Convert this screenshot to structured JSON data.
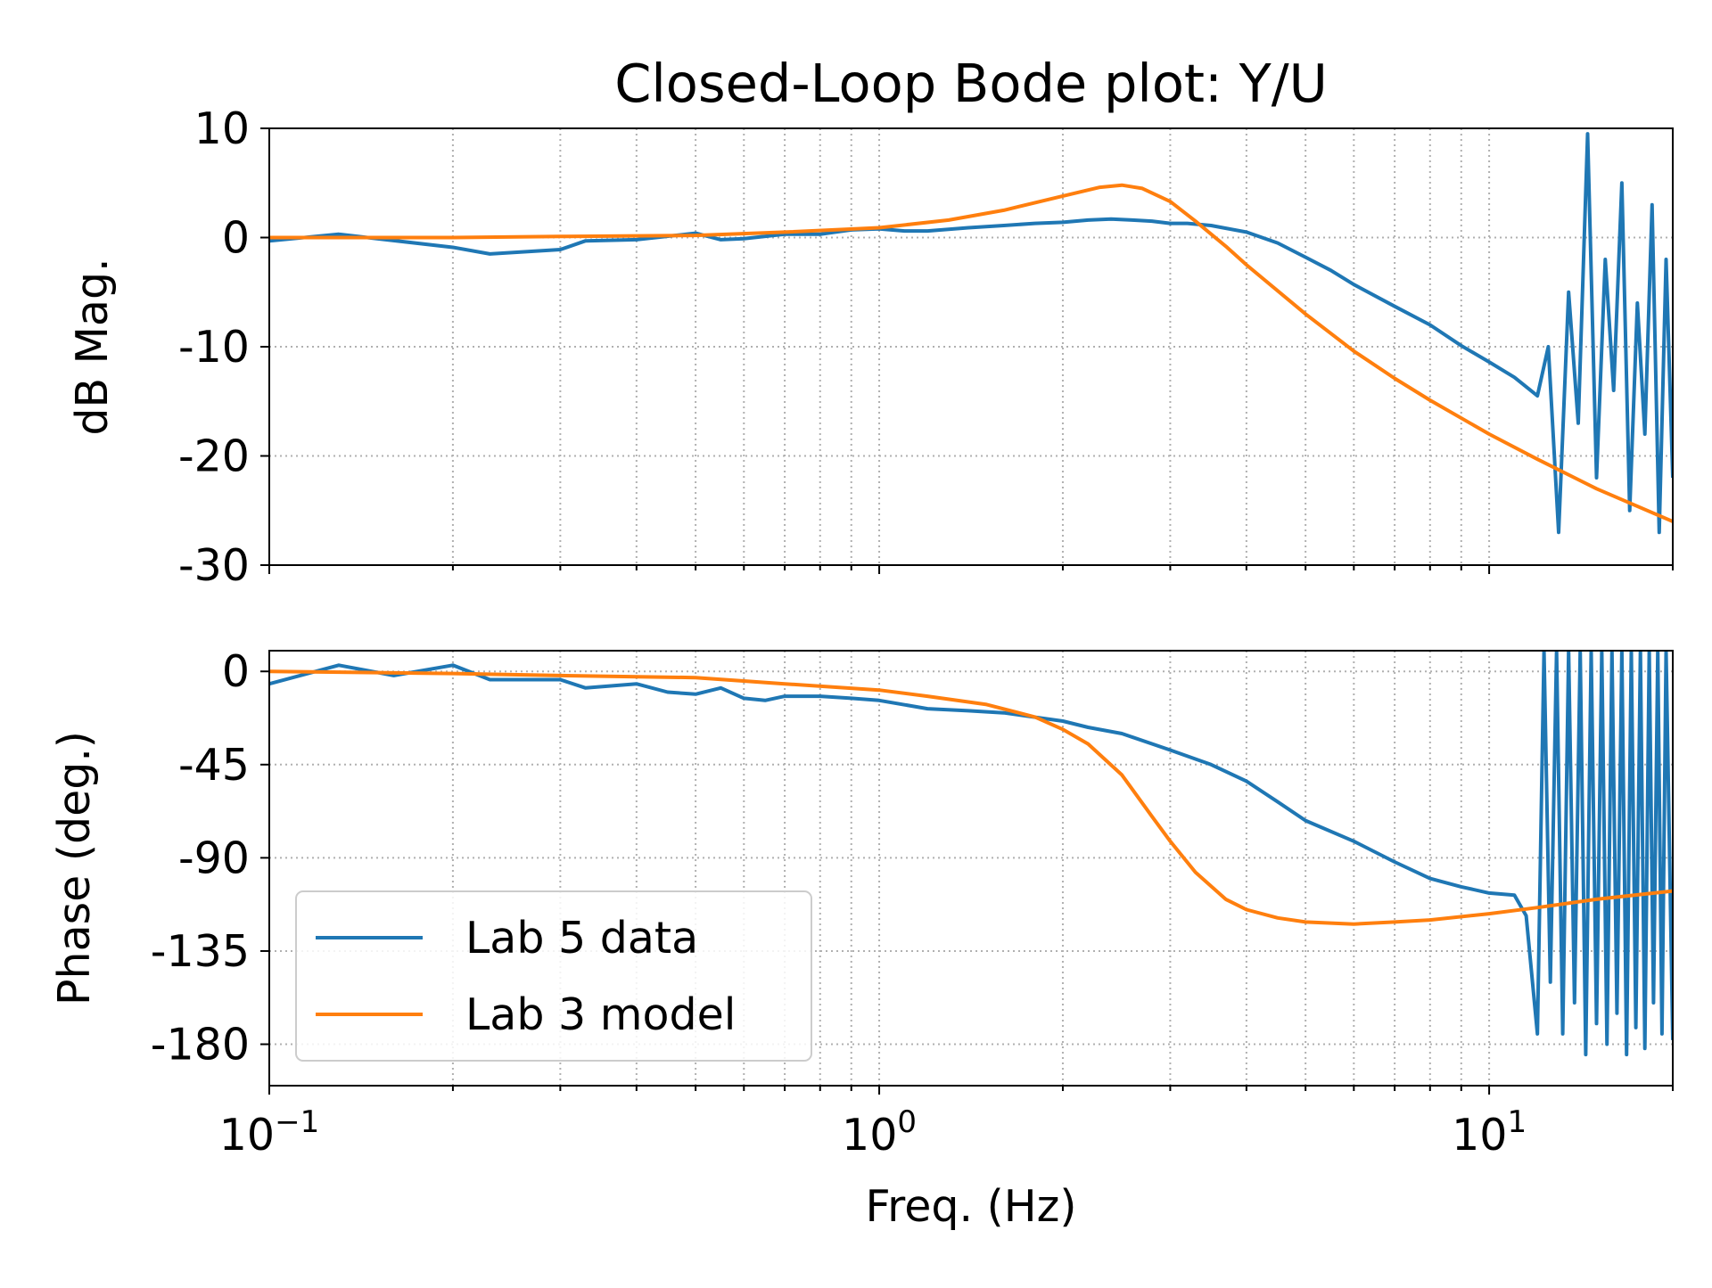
{
  "chart_data": {
    "title": "Closed-Loop Bode plot: Y/U",
    "xlabel": "Freq. (Hz)",
    "x_scale": "log",
    "xlim": [
      0.1,
      20
    ],
    "x_ticks": [
      {
        "value": 0.1,
        "base": "10",
        "exp": "−1"
      },
      {
        "value": 1,
        "base": "10",
        "exp": "0"
      },
      {
        "value": 10,
        "base": "10",
        "exp": "1"
      }
    ],
    "colors": {
      "data": "#1f77b4",
      "model": "#ff7f0e"
    },
    "grid": true,
    "legend": {
      "placement": "lower-left of phase panel",
      "entries": [
        "Lab 5 data",
        "Lab 3 model"
      ]
    },
    "panels": [
      {
        "type": "line",
        "ylabel": "dB Mag.",
        "ylim": [
          -30,
          10
        ],
        "yticks": [
          10,
          0,
          -10,
          -20,
          -30
        ],
        "ytick_labels": [
          "10",
          "0",
          "-10",
          "-20",
          "-30"
        ],
        "series": [
          {
            "name": "Lab 5 data",
            "x": [
              0.1,
              0.13,
              0.2,
              0.23,
              0.3,
              0.33,
              0.4,
              0.5,
              0.55,
              0.6,
              0.7,
              0.8,
              0.9,
              1.0,
              1.1,
              1.2,
              1.4,
              1.6,
              1.8,
              2.0,
              2.2,
              2.4,
              2.6,
              2.8,
              3.0,
              3.2,
              3.5,
              4.0,
              4.5,
              5.0,
              5.5,
              6.0,
              7.0,
              8.0,
              9.0,
              10.0,
              11.0,
              12.0,
              12.5,
              13.0,
              13.5,
              14.0,
              14.5,
              15.0,
              15.5,
              16.0,
              16.5,
              17.0,
              17.5,
              18.0,
              18.5,
              19.0,
              19.5,
              20.0
            ],
            "y": [
              -0.3,
              0.3,
              -0.9,
              -1.5,
              -1.1,
              -0.3,
              -0.2,
              0.4,
              -0.2,
              -0.1,
              0.3,
              0.3,
              0.7,
              0.8,
              0.6,
              0.6,
              0.9,
              1.1,
              1.3,
              1.4,
              1.6,
              1.7,
              1.6,
              1.5,
              1.3,
              1.3,
              1.1,
              0.5,
              -0.5,
              -1.8,
              -3.0,
              -4.3,
              -6.3,
              -8.0,
              -9.9,
              -11.4,
              -12.8,
              -14.5,
              -10.0,
              -27.0,
              -5.0,
              -17.0,
              9.5,
              -22.0,
              -2.0,
              -14.0,
              5.0,
              -25.0,
              -6.0,
              -18.0,
              3.0,
              -27.0,
              -2.0,
              -22.0
            ]
          },
          {
            "name": "Lab 3 model",
            "x": [
              0.1,
              0.2,
              0.3,
              0.5,
              0.7,
              1.0,
              1.3,
              1.6,
              2.0,
              2.3,
              2.5,
              2.7,
              3.0,
              3.3,
              3.7,
              4.0,
              5.0,
              6.0,
              7.0,
              8.0,
              10.0,
              12.0,
              15.0,
              20.0
            ],
            "y": [
              0.0,
              0.0,
              0.1,
              0.2,
              0.5,
              0.9,
              1.6,
              2.5,
              3.8,
              4.6,
              4.8,
              4.5,
              3.3,
              1.5,
              -0.8,
              -2.5,
              -7.0,
              -10.4,
              -12.9,
              -14.9,
              -18.0,
              -20.3,
              -23.0,
              -26.0
            ]
          }
        ]
      },
      {
        "type": "line",
        "ylabel": "Phase (deg.)",
        "ylim": [
          -200,
          10
        ],
        "yticks": [
          0,
          -45,
          -90,
          -135,
          -180
        ],
        "ytick_labels": [
          "0",
          "-45",
          "-90",
          "-135",
          "-180"
        ],
        "series": [
          {
            "name": "Lab 5 data",
            "x": [
              0.1,
              0.13,
              0.16,
              0.2,
              0.23,
              0.3,
              0.33,
              0.4,
              0.45,
              0.5,
              0.55,
              0.6,
              0.65,
              0.7,
              0.8,
              0.9,
              1.0,
              1.2,
              1.4,
              1.6,
              2.0,
              2.2,
              2.5,
              3.0,
              3.5,
              4.0,
              4.5,
              5.0,
              6.0,
              7.0,
              8.0,
              9.0,
              10.0,
              11.0,
              11.5,
              12.0,
              12.3,
              12.6,
              12.9,
              13.2,
              13.5,
              13.8,
              14.1,
              14.4,
              14.7,
              15.0,
              15.3,
              15.6,
              15.9,
              16.2,
              16.5,
              16.8,
              17.1,
              17.4,
              17.7,
              18.0,
              18.3,
              18.6,
              18.9,
              19.2,
              19.5,
              20.0
            ],
            "y": [
              -6,
              3,
              -2,
              3,
              -4,
              -4,
              -8,
              -6,
              -10,
              -11,
              -8,
              -13,
              -14,
              -12,
              -12,
              -13,
              -14,
              -18,
              -19,
              -20,
              -24,
              -27,
              -30,
              -38,
              -45,
              -53,
              -63,
              -72,
              -82,
              -92,
              -100,
              -104,
              -107,
              -108,
              -118,
              -175,
              10,
              -150,
              10,
              -175,
              10,
              -160,
              10,
              -185,
              10,
              -170,
              10,
              -180,
              10,
              -165,
              10,
              -185,
              10,
              -172,
              10,
              -182,
              10,
              -160,
              10,
              -175,
              10,
              -178
            ]
          },
          {
            "name": "Lab 3 model",
            "x": [
              0.1,
              0.2,
              0.3,
              0.5,
              0.7,
              1.0,
              1.2,
              1.5,
              1.8,
              2.0,
              2.2,
              2.5,
              2.8,
              3.0,
              3.3,
              3.7,
              4.0,
              4.5,
              5.0,
              6.0,
              7.0,
              8.0,
              10.0,
              12.0,
              15.0,
              20.0
            ],
            "y": [
              0,
              -1,
              -2,
              -3,
              -6,
              -9,
              -12,
              -16,
              -22,
              -28,
              -35,
              -50,
              -70,
              -82,
              -97,
              -110,
              -115,
              -119,
              -121,
              -122,
              -121,
              -120,
              -117,
              -114,
              -110,
              -106
            ]
          }
        ]
      }
    ]
  }
}
